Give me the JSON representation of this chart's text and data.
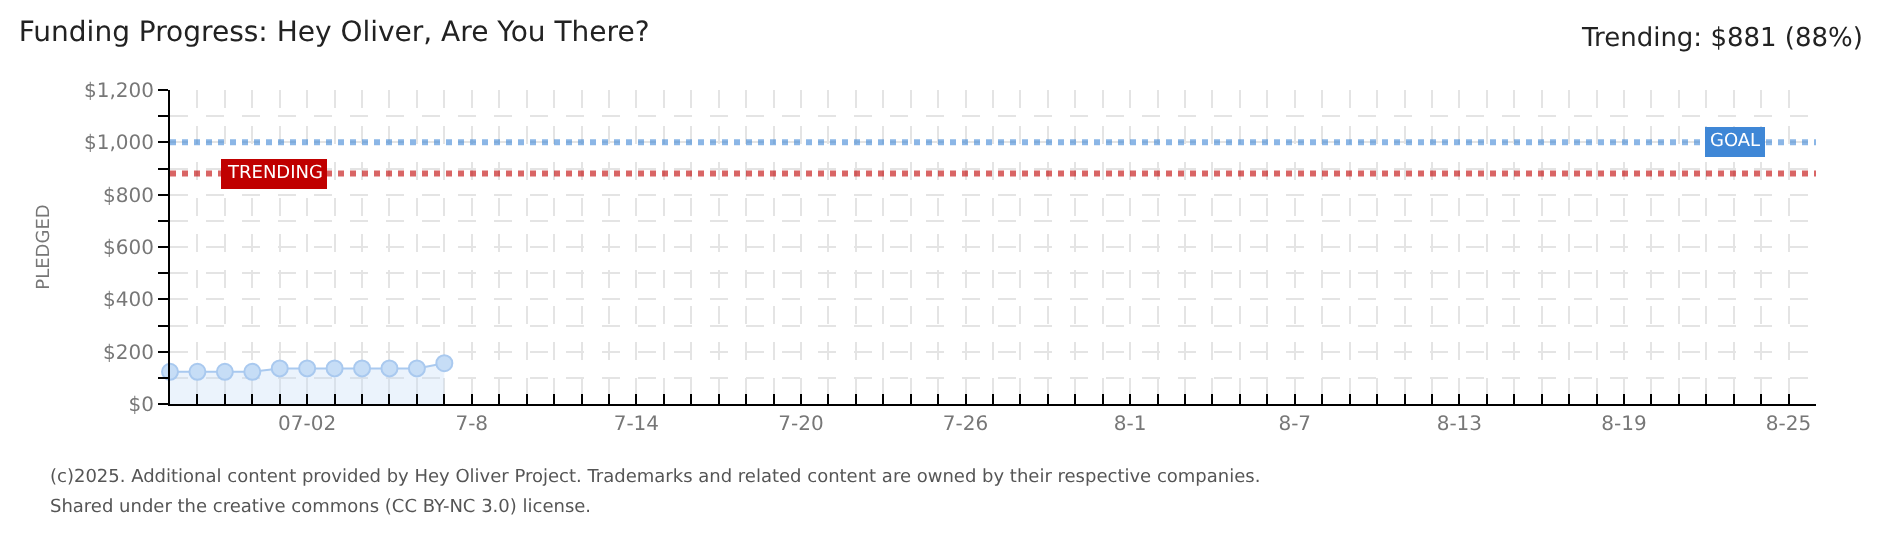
{
  "chart_data": {
    "type": "area",
    "title": "Funding Progress: Hey Oliver, Are You There?",
    "subtitle": "Trending: $881 (88%)",
    "ylabel": "PLEDGED",
    "x": [
      "--06-27",
      "--06-28",
      "--06-29",
      "--06-30",
      "--07-01",
      "--07-02",
      "--07-03",
      "--07-04",
      "--07-05",
      "--07-06",
      "--07-07"
    ],
    "series": [
      {
        "color": "#a9c9ef",
        "values": [
          123,
          123,
          123,
          123,
          136,
          136,
          136,
          136,
          136,
          136,
          156
        ]
      }
    ],
    "marker": "circle",
    "xlim": [
      "--06-27",
      "--08-26"
    ],
    "xticks": [
      {
        "value": "--06-27",
        "label": null
      },
      {
        "value": "--06-28",
        "label": null
      },
      {
        "value": "--06-29",
        "label": null
      },
      {
        "value": "--06-30",
        "label": null
      },
      {
        "value": "--07-01",
        "label": null
      },
      {
        "value": "--07-02",
        "label": "07-02"
      },
      {
        "value": "--07-03",
        "label": null
      },
      {
        "value": "--07-04",
        "label": null
      },
      {
        "value": "--07-05",
        "label": null
      },
      {
        "value": "--07-06",
        "label": null
      },
      {
        "value": "--07-07",
        "label": null
      },
      {
        "value": "--07-08",
        "label": "7-8"
      },
      {
        "value": "--07-09",
        "label": null
      },
      {
        "value": "--07-10",
        "label": null
      },
      {
        "value": "--07-11",
        "label": null
      },
      {
        "value": "--07-12",
        "label": null
      },
      {
        "value": "--07-13",
        "label": null
      },
      {
        "value": "--07-14",
        "label": "7-14"
      },
      {
        "value": "--07-15",
        "label": null
      },
      {
        "value": "--07-16",
        "label": null
      },
      {
        "value": "--07-17",
        "label": null
      },
      {
        "value": "--07-18",
        "label": null
      },
      {
        "value": "--07-19",
        "label": null
      },
      {
        "value": "--07-20",
        "label": "7-20"
      },
      {
        "value": "--07-21",
        "label": null
      },
      {
        "value": "--07-22",
        "label": null
      },
      {
        "value": "--07-23",
        "label": null
      },
      {
        "value": "--07-24",
        "label": null
      },
      {
        "value": "--07-25",
        "label": null
      },
      {
        "value": "--07-26",
        "label": "7-26"
      },
      {
        "value": "--07-27",
        "label": null
      },
      {
        "value": "--07-28",
        "label": null
      },
      {
        "value": "--07-29",
        "label": null
      },
      {
        "value": "--07-30",
        "label": null
      },
      {
        "value": "--07-31",
        "label": null
      },
      {
        "value": "--08-01",
        "label": "8-1"
      },
      {
        "value": "--08-02",
        "label": null
      },
      {
        "value": "--08-03",
        "label": null
      },
      {
        "value": "--08-04",
        "label": null
      },
      {
        "value": "--08-05",
        "label": null
      },
      {
        "value": "--08-06",
        "label": null
      },
      {
        "value": "--08-07",
        "label": "8-7"
      },
      {
        "value": "--08-08",
        "label": null
      },
      {
        "value": "--08-09",
        "label": null
      },
      {
        "value": "--08-10",
        "label": null
      },
      {
        "value": "--08-11",
        "label": null
      },
      {
        "value": "--08-12",
        "label": null
      },
      {
        "value": "--08-13",
        "label": "8-13"
      },
      {
        "value": "--08-14",
        "label": null
      },
      {
        "value": "--08-15",
        "label": null
      },
      {
        "value": "--08-16",
        "label": null
      },
      {
        "value": "--08-17",
        "label": null
      },
      {
        "value": "--08-18",
        "label": null
      },
      {
        "value": "--08-19",
        "label": "8-19"
      },
      {
        "value": "--08-20",
        "label": null
      },
      {
        "value": "--08-21",
        "label": null
      },
      {
        "value": "--08-22",
        "label": null
      },
      {
        "value": "--08-23",
        "label": null
      },
      {
        "value": "--08-24",
        "label": null
      },
      {
        "value": "--08-25",
        "label": "8-25"
      }
    ],
    "ylim": [
      0,
      1200
    ],
    "yticks": [
      {
        "value": 0,
        "label": "$0"
      },
      {
        "value": 100,
        "label": null
      },
      {
        "value": 200,
        "label": "$200"
      },
      {
        "value": 300,
        "label": null
      },
      {
        "value": 400,
        "label": "$400"
      },
      {
        "value": 500,
        "label": null
      },
      {
        "value": 600,
        "label": "$600"
      },
      {
        "value": 700,
        "label": null
      },
      {
        "value": 800,
        "label": "$800"
      },
      {
        "value": 900,
        "label": null
      },
      {
        "value": 1000,
        "label": "$1,000"
      },
      {
        "value": 1100,
        "label": null
      },
      {
        "value": 1200,
        "label": "$1,200"
      }
    ],
    "grid": true,
    "ref_lines": [
      {
        "axis": "y",
        "value": 1000,
        "label": "GOAL",
        "color": "#3f87d6",
        "line_style": "dotted"
      },
      {
        "axis": "y",
        "value": 881,
        "label": "TRENDING",
        "color": "#c00000",
        "line_style": "dotted"
      }
    ],
    "annotations": [
      "(c)2025. Additional content provided by Hey Oliver Project. Trademarks and related content are owned by their respective companies.",
      "Shared under the creative commons (CC BY-NC 3.0) license."
    ]
  }
}
